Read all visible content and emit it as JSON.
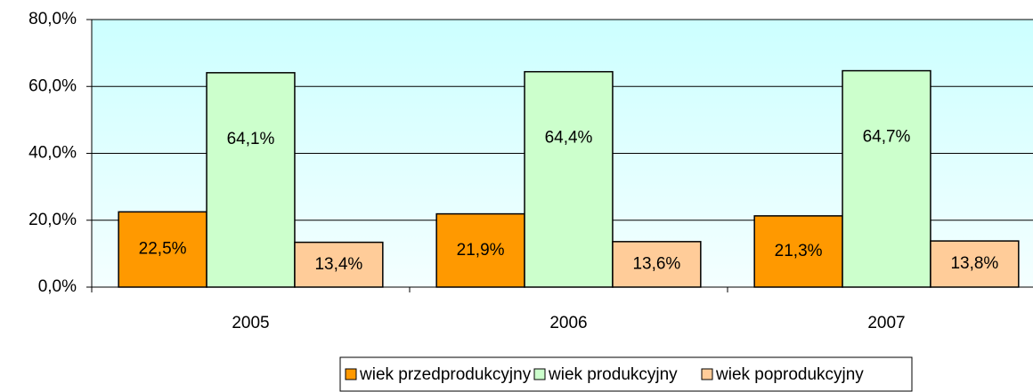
{
  "chart_data": {
    "type": "bar",
    "categories": [
      "2005",
      "2006",
      "2007"
    ],
    "series": [
      {
        "name": "wiek przedprodukcyjny",
        "color": "#ff9900",
        "values": [
          22.5,
          21.9,
          21.3
        ],
        "value_labels": [
          "22,5%",
          "21,9%",
          "21,3%"
        ]
      },
      {
        "name": "wiek produkcyjny",
        "color": "#ccffcc",
        "values": [
          64.1,
          64.4,
          64.7
        ],
        "value_labels": [
          "64,1%",
          "64,4%",
          "64,7%"
        ]
      },
      {
        "name": "wiek poprodukcyjny",
        "color": "#ffcc99",
        "values": [
          13.4,
          13.6,
          13.8
        ],
        "value_labels": [
          "13,4%",
          "13,6%",
          "13,8%"
        ]
      }
    ],
    "ylim": [
      0,
      80
    ],
    "yticks": [
      {
        "value": 0,
        "label": "0,0%"
      },
      {
        "value": 20,
        "label": "20,0%"
      },
      {
        "value": 40,
        "label": "40,0%"
      },
      {
        "value": 60,
        "label": "60,0%"
      },
      {
        "value": 80,
        "label": "80,0%"
      }
    ],
    "grid": true,
    "legend": "bottom"
  }
}
